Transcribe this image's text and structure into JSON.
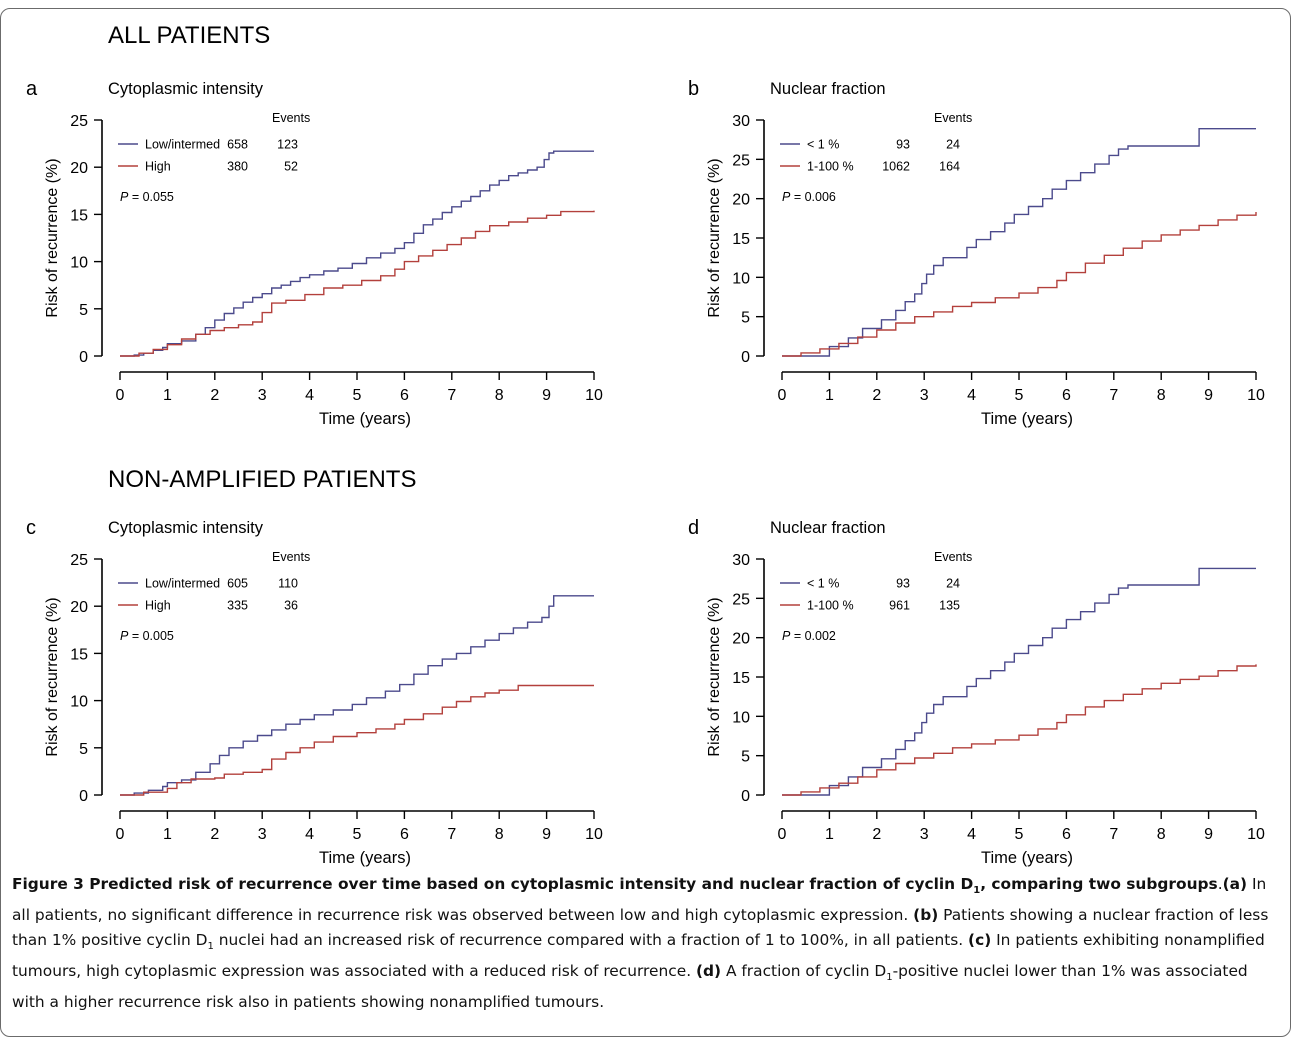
{
  "group_titles": {
    "top": "ALL PATIENTS",
    "bottom": "NON-AMPLIFIED PATIENTS"
  },
  "colors": {
    "series1": "#4b4a8c",
    "series2": "#b3403c",
    "axis": "#000000"
  },
  "chart_data": [
    {
      "type": "line",
      "panel_letter": "a",
      "title": "Cytoplasmic intensity",
      "xlabel": "Time (years)",
      "ylabel": "Risk of recurrence (%)",
      "xlim": [
        0,
        10
      ],
      "ylim": [
        0,
        25
      ],
      "xticks": [
        0,
        1,
        2,
        3,
        4,
        5,
        6,
        7,
        8,
        9,
        10
      ],
      "yticks": [
        0,
        5,
        10,
        15,
        20,
        25
      ],
      "events_header": "Events",
      "pvalue_label": "P",
      "pvalue": "= 0.055",
      "series": [
        {
          "name": "Low/intermed",
          "n": "658",
          "events": "123",
          "x": [
            0,
            0.3,
            0.5,
            0.7,
            0.9,
            1.0,
            1.3,
            1.6,
            1.8,
            2.0,
            2.2,
            2.4,
            2.6,
            2.8,
            3.0,
            3.2,
            3.4,
            3.6,
            3.8,
            4.0,
            4.3,
            4.6,
            4.9,
            5.2,
            5.5,
            5.8,
            6.0,
            6.2,
            6.4,
            6.6,
            6.8,
            7.0,
            7.2,
            7.4,
            7.6,
            7.8,
            8.0,
            8.2,
            8.4,
            8.6,
            8.8,
            8.95,
            9.05,
            9.15,
            9.5,
            10.0
          ],
          "y": [
            0,
            0.1,
            0.3,
            0.6,
            0.9,
            1.3,
            1.6,
            2.3,
            3.0,
            3.8,
            4.5,
            5.1,
            5.7,
            6.2,
            6.6,
            7.2,
            7.5,
            7.9,
            8.3,
            8.6,
            9.0,
            9.3,
            9.8,
            10.4,
            10.9,
            11.4,
            12.0,
            13.0,
            13.9,
            14.5,
            15.2,
            15.8,
            16.4,
            16.9,
            17.5,
            18.1,
            18.6,
            19.1,
            19.4,
            19.7,
            20.0,
            20.8,
            21.5,
            21.7,
            21.7,
            21.7
          ]
        },
        {
          "name": "High",
          "n": "380",
          "events": "52",
          "x": [
            0,
            0.4,
            0.7,
            1.0,
            1.3,
            1.6,
            1.9,
            2.2,
            2.5,
            2.8,
            3.0,
            3.2,
            3.5,
            3.9,
            4.3,
            4.7,
            5.1,
            5.5,
            5.8,
            6.0,
            6.3,
            6.6,
            6.9,
            7.2,
            7.5,
            7.8,
            8.2,
            8.6,
            9.0,
            9.3,
            10.0
          ],
          "y": [
            0,
            0.3,
            0.7,
            1.2,
            1.8,
            2.3,
            2.7,
            3.0,
            3.3,
            3.6,
            4.6,
            5.6,
            5.9,
            6.5,
            7.2,
            7.5,
            8.0,
            8.5,
            9.2,
            10.0,
            10.6,
            11.2,
            11.8,
            12.5,
            13.2,
            13.8,
            14.2,
            14.6,
            14.9,
            15.3,
            15.4
          ]
        }
      ]
    },
    {
      "type": "line",
      "panel_letter": "b",
      "title": "Nuclear fraction",
      "xlabel": "Time (years)",
      "ylabel": "Risk of recurrence (%)",
      "xlim": [
        0,
        10
      ],
      "ylim": [
        0,
        30
      ],
      "xticks": [
        0,
        1,
        2,
        3,
        4,
        5,
        6,
        7,
        8,
        9,
        10
      ],
      "yticks": [
        0,
        5,
        10,
        15,
        20,
        25,
        30
      ],
      "events_header": "Events",
      "pvalue_label": "P",
      "pvalue": "= 0.006",
      "series": [
        {
          "name": "< 1 %",
          "n": "93",
          "events": "24",
          "x": [
            0,
            0.4,
            1.0,
            1.4,
            1.7,
            2.1,
            2.4,
            2.6,
            2.8,
            2.95,
            3.05,
            3.2,
            3.4,
            3.9,
            4.1,
            4.4,
            4.7,
            4.9,
            5.2,
            5.5,
            5.7,
            6.0,
            6.3,
            6.6,
            6.9,
            7.1,
            7.3,
            7.5,
            8.8,
            8.9,
            10.0
          ],
          "y": [
            0,
            0,
            1.2,
            2.3,
            3.5,
            4.6,
            5.8,
            6.9,
            7.9,
            9.2,
            10.4,
            11.5,
            12.5,
            13.8,
            14.8,
            15.8,
            16.9,
            18.0,
            19.0,
            20.0,
            21.2,
            22.3,
            23.3,
            24.4,
            25.5,
            26.3,
            26.7,
            26.7,
            28.9,
            28.9,
            28.9
          ]
        },
        {
          "name": "1-100 %",
          "n": "1062",
          "events": "164",
          "x": [
            0,
            0.4,
            0.8,
            1.2,
            1.6,
            2.0,
            2.4,
            2.8,
            3.2,
            3.6,
            4.0,
            4.5,
            5.0,
            5.4,
            5.8,
            6.0,
            6.4,
            6.8,
            7.2,
            7.6,
            8.0,
            8.4,
            8.8,
            9.2,
            9.6,
            10.0
          ],
          "y": [
            0,
            0.4,
            0.9,
            1.6,
            2.4,
            3.3,
            4.2,
            5.0,
            5.6,
            6.3,
            6.8,
            7.4,
            8.0,
            8.7,
            9.6,
            10.6,
            11.8,
            12.8,
            13.7,
            14.6,
            15.4,
            16.0,
            16.6,
            17.3,
            17.9,
            18.3
          ]
        }
      ]
    },
    {
      "type": "line",
      "panel_letter": "c",
      "title": "Cytoplasmic intensity",
      "xlabel": "Time (years)",
      "ylabel": "Risk of recurrence (%)",
      "xlim": [
        0,
        10
      ],
      "ylim": [
        0,
        25
      ],
      "xticks": [
        0,
        1,
        2,
        3,
        4,
        5,
        6,
        7,
        8,
        9,
        10
      ],
      "yticks": [
        0,
        5,
        10,
        15,
        20,
        25
      ],
      "events_header": "Events",
      "pvalue_label": "P",
      "pvalue": "= 0.005",
      "series": [
        {
          "name": "Low/intermed",
          "n": "605",
          "events": "110",
          "x": [
            0,
            0.3,
            0.6,
            0.9,
            1.0,
            1.3,
            1.6,
            1.9,
            2.1,
            2.3,
            2.6,
            2.9,
            3.2,
            3.5,
            3.8,
            4.1,
            4.5,
            4.9,
            5.2,
            5.6,
            5.9,
            6.2,
            6.5,
            6.8,
            7.1,
            7.4,
            7.7,
            8.0,
            8.3,
            8.6,
            8.9,
            9.05,
            9.15,
            9.5,
            10.0
          ],
          "y": [
            0,
            0.2,
            0.5,
            0.9,
            1.3,
            1.6,
            2.4,
            3.3,
            4.2,
            5.0,
            5.7,
            6.3,
            6.9,
            7.5,
            8.0,
            8.5,
            9.0,
            9.6,
            10.3,
            11.0,
            11.7,
            12.8,
            13.7,
            14.4,
            15.0,
            15.7,
            16.4,
            17.1,
            17.7,
            18.3,
            18.8,
            20.0,
            21.1,
            21.1,
            21.1
          ]
        },
        {
          "name": "High",
          "n": "335",
          "events": "36",
          "x": [
            0,
            0.5,
            1.0,
            1.2,
            1.5,
            2.0,
            2.2,
            2.6,
            3.0,
            3.2,
            3.5,
            3.8,
            4.1,
            4.5,
            5.0,
            5.4,
            5.8,
            6.0,
            6.4,
            6.8,
            7.1,
            7.4,
            7.7,
            8.0,
            8.4,
            9.0,
            10.0
          ],
          "y": [
            0,
            0.3,
            0.7,
            1.3,
            1.7,
            1.8,
            2.2,
            2.4,
            2.7,
            3.8,
            4.5,
            5.0,
            5.6,
            6.2,
            6.6,
            7.0,
            7.5,
            8.0,
            8.6,
            9.3,
            9.9,
            10.4,
            10.8,
            11.1,
            11.6,
            11.6,
            11.6
          ]
        }
      ]
    },
    {
      "type": "line",
      "panel_letter": "d",
      "title": "Nuclear fraction",
      "xlabel": "Time (years)",
      "ylabel": "Risk of recurrence (%)",
      "xlim": [
        0,
        10
      ],
      "ylim": [
        0,
        30
      ],
      "xticks": [
        0,
        1,
        2,
        3,
        4,
        5,
        6,
        7,
        8,
        9,
        10
      ],
      "yticks": [
        0,
        5,
        10,
        15,
        20,
        25,
        30
      ],
      "events_header": "Events",
      "pvalue_label": "P",
      "pvalue": "= 0.002",
      "series": [
        {
          "name": "< 1 %",
          "n": "93",
          "events": "24",
          "x": [
            0,
            0.4,
            1.0,
            1.4,
            1.7,
            2.1,
            2.4,
            2.6,
            2.8,
            2.95,
            3.05,
            3.2,
            3.4,
            3.9,
            4.1,
            4.4,
            4.7,
            4.9,
            5.2,
            5.5,
            5.7,
            6.0,
            6.3,
            6.6,
            6.9,
            7.1,
            7.3,
            7.5,
            8.8,
            8.9,
            10.0
          ],
          "y": [
            0,
            0,
            1.2,
            2.3,
            3.5,
            4.6,
            5.8,
            6.9,
            7.9,
            9.2,
            10.4,
            11.5,
            12.5,
            13.8,
            14.8,
            15.8,
            16.9,
            18.0,
            19.0,
            20.0,
            21.2,
            22.3,
            23.3,
            24.4,
            25.5,
            26.3,
            26.7,
            26.7,
            28.8,
            28.8,
            28.8
          ]
        },
        {
          "name": "1-100 %",
          "n": "961",
          "events": "135",
          "x": [
            0,
            0.4,
            0.8,
            1.2,
            1.6,
            2.0,
            2.4,
            2.8,
            3.2,
            3.6,
            4.0,
            4.5,
            5.0,
            5.4,
            5.8,
            6.0,
            6.4,
            6.8,
            7.2,
            7.6,
            8.0,
            8.4,
            8.8,
            9.2,
            9.6,
            10.0
          ],
          "y": [
            0,
            0.4,
            0.9,
            1.5,
            2.3,
            3.2,
            4.0,
            4.7,
            5.3,
            6.0,
            6.5,
            7.0,
            7.6,
            8.4,
            9.2,
            10.2,
            11.2,
            12.0,
            12.8,
            13.5,
            14.2,
            14.7,
            15.1,
            15.8,
            16.4,
            16.6
          ]
        }
      ]
    }
  ],
  "caption": {
    "figure_label": "Figure 3",
    "title_part1": " Predicted risk of recurrence over time based on cytoplasmic intensity and nuclear fraction of cyclin D",
    "title_sub": "1",
    "title_part2": ", comparing two subgroups",
    "title_end": ".",
    "a_label": "(a)",
    "a_text": " In all patients, no significant difference in recurrence risk was observed between low and high cytoplasmic expression. ",
    "b_label": "(b)",
    "b_text1": " Patients showing a nuclear fraction of less than 1% positive cyclin D",
    "b_sub": "1",
    "b_text2": " nuclei had an increased risk of recurrence compared with a fraction of 1 to 100%, in all patients. ",
    "c_label": "(c)",
    "c_text": " In patients exhibiting nonamplified tumours, high cytoplasmic expression was associated with a reduced risk of recurrence. ",
    "d_label": "(d)",
    "d_text1": " A fraction of cyclin D",
    "d_sub": "1",
    "d_text2": "-positive nuclei lower than 1% was associated with a higher recurrence risk also in patients showing nonamplified tumours."
  }
}
